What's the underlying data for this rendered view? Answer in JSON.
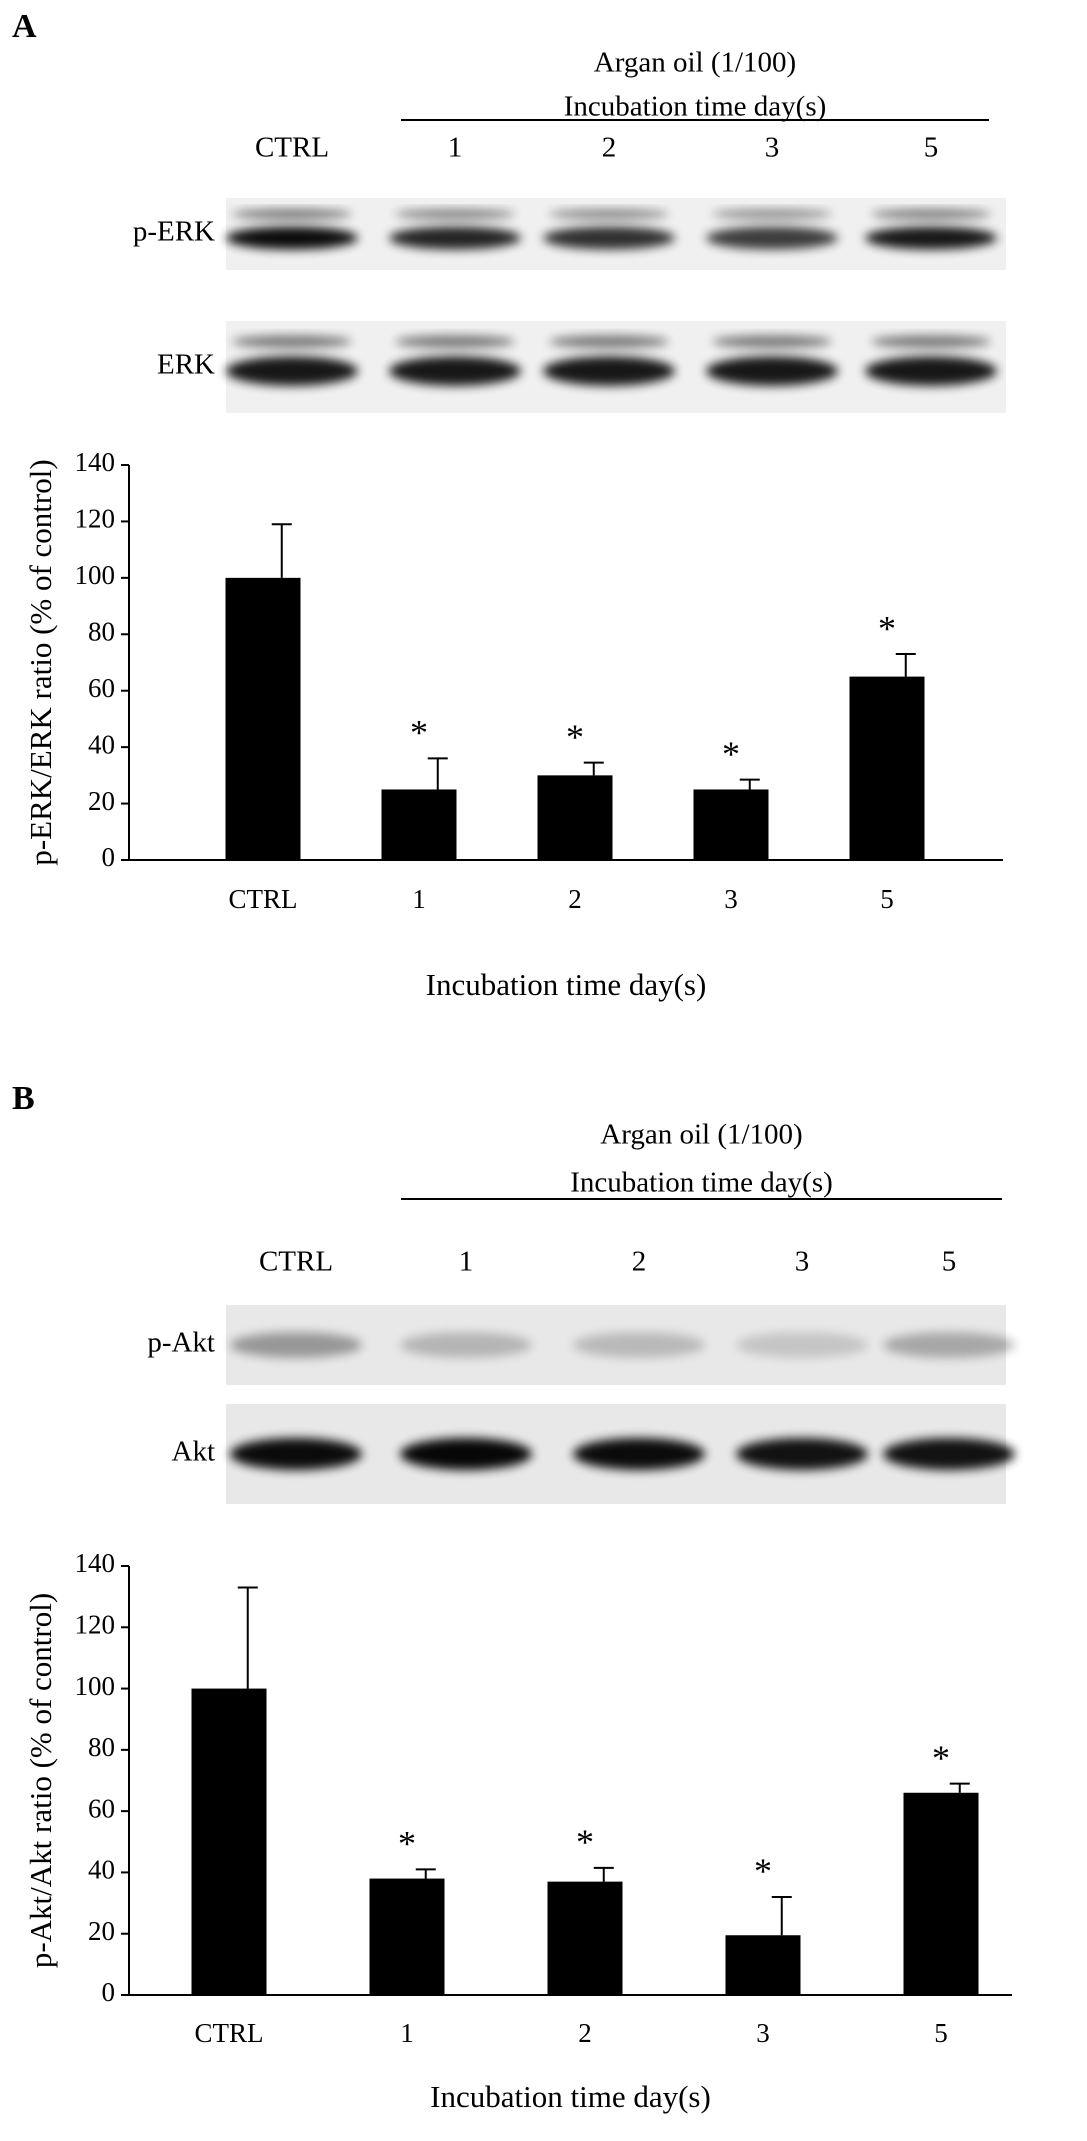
{
  "chart_data": [
    {
      "type": "bar",
      "panel_label": "A",
      "blot": {
        "header": [
          "Argan oil (1/100)",
          "Incubation time day(s)"
        ],
        "lanes": [
          "CTRL",
          "1",
          "2",
          "3",
          "5"
        ],
        "rows": [
          "p-ERK",
          "ERK"
        ]
      },
      "y_label": "p-ERK/ERK ratio (% of control)",
      "x_label": "Incubation time day(s)",
      "categories": [
        "CTRL",
        "1",
        "2",
        "3",
        "5"
      ],
      "values": [
        100,
        25,
        30,
        25,
        65
      ],
      "errors": [
        19,
        11,
        4.5,
        3.5,
        8
      ],
      "markers": [
        null,
        "*",
        "*",
        "*",
        "*"
      ],
      "color": "#000000",
      "ylim": [
        0,
        140
      ],
      "yticks": [
        0,
        20,
        40,
        60,
        80,
        100,
        120,
        140
      ]
    },
    {
      "type": "bar",
      "panel_label": "B",
      "blot": {
        "header": [
          "Argan oil (1/100)",
          "Incubation time day(s)"
        ],
        "lanes": [
          "CTRL",
          "1",
          "2",
          "3",
          "5"
        ],
        "rows": [
          "p-Akt",
          "Akt"
        ]
      },
      "y_label": "p-Akt/Akt ratio (% of control)",
      "x_label": "Incubation time day(s)",
      "categories": [
        "CTRL",
        "1",
        "2",
        "3",
        "5"
      ],
      "values": [
        100,
        38,
        37,
        19.5,
        66
      ],
      "errors": [
        33,
        3,
        4.5,
        12.5,
        3
      ],
      "markers": [
        null,
        "*",
        "*",
        "*",
        "*"
      ],
      "color": "#000000",
      "ylim": [
        0,
        140
      ],
      "yticks": [
        0,
        20,
        40,
        60,
        80,
        100,
        120,
        140
      ]
    }
  ]
}
